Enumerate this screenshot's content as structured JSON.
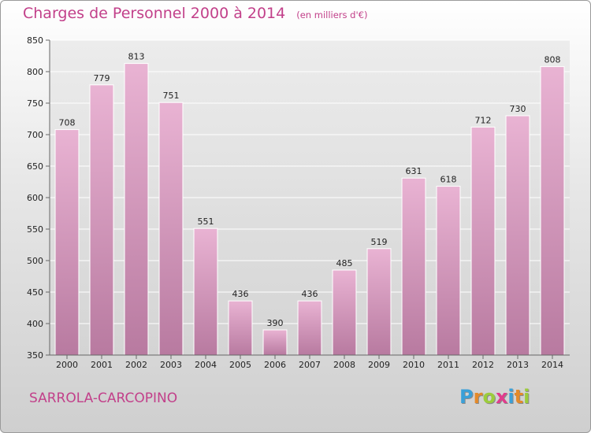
{
  "header": {
    "title": "Charges de Personnel 2000 à 2014",
    "unit": "(en milliers d'€)"
  },
  "footer": {
    "commune": "SARROLA-CARCOPINO",
    "logo_letters": [
      "P",
      "r",
      "o",
      "x",
      "i",
      "t",
      "i"
    ],
    "logo_colors": [
      "#3aa0d8",
      "#e48a2a",
      "#9ccc3c",
      "#e03c8c",
      "#3aa0d8",
      "#e48a2a",
      "#9ccc3c"
    ]
  },
  "colors": {
    "accent": "#c2408a",
    "bar_top": "#e9b3d3",
    "bar_bottom": "#b87aa0"
  },
  "chart_data": {
    "type": "bar",
    "categories": [
      "2000",
      "2001",
      "2002",
      "2003",
      "2004",
      "2005",
      "2006",
      "2007",
      "2008",
      "2009",
      "2010",
      "2011",
      "2012",
      "2013",
      "2014"
    ],
    "values": [
      708,
      779,
      813,
      751,
      551,
      436,
      390,
      436,
      485,
      519,
      631,
      618,
      712,
      730,
      808
    ],
    "data_labels": [
      "708",
      "779",
      "813",
      "751",
      "551",
      "436",
      "390",
      "436",
      "485",
      "519",
      "631",
      "618",
      "712",
      "730",
      "808"
    ],
    "ylim": [
      350,
      850
    ],
    "yticks": [
      350,
      400,
      450,
      500,
      550,
      600,
      650,
      700,
      750,
      800,
      850
    ],
    "grid": true,
    "legend": "none"
  }
}
